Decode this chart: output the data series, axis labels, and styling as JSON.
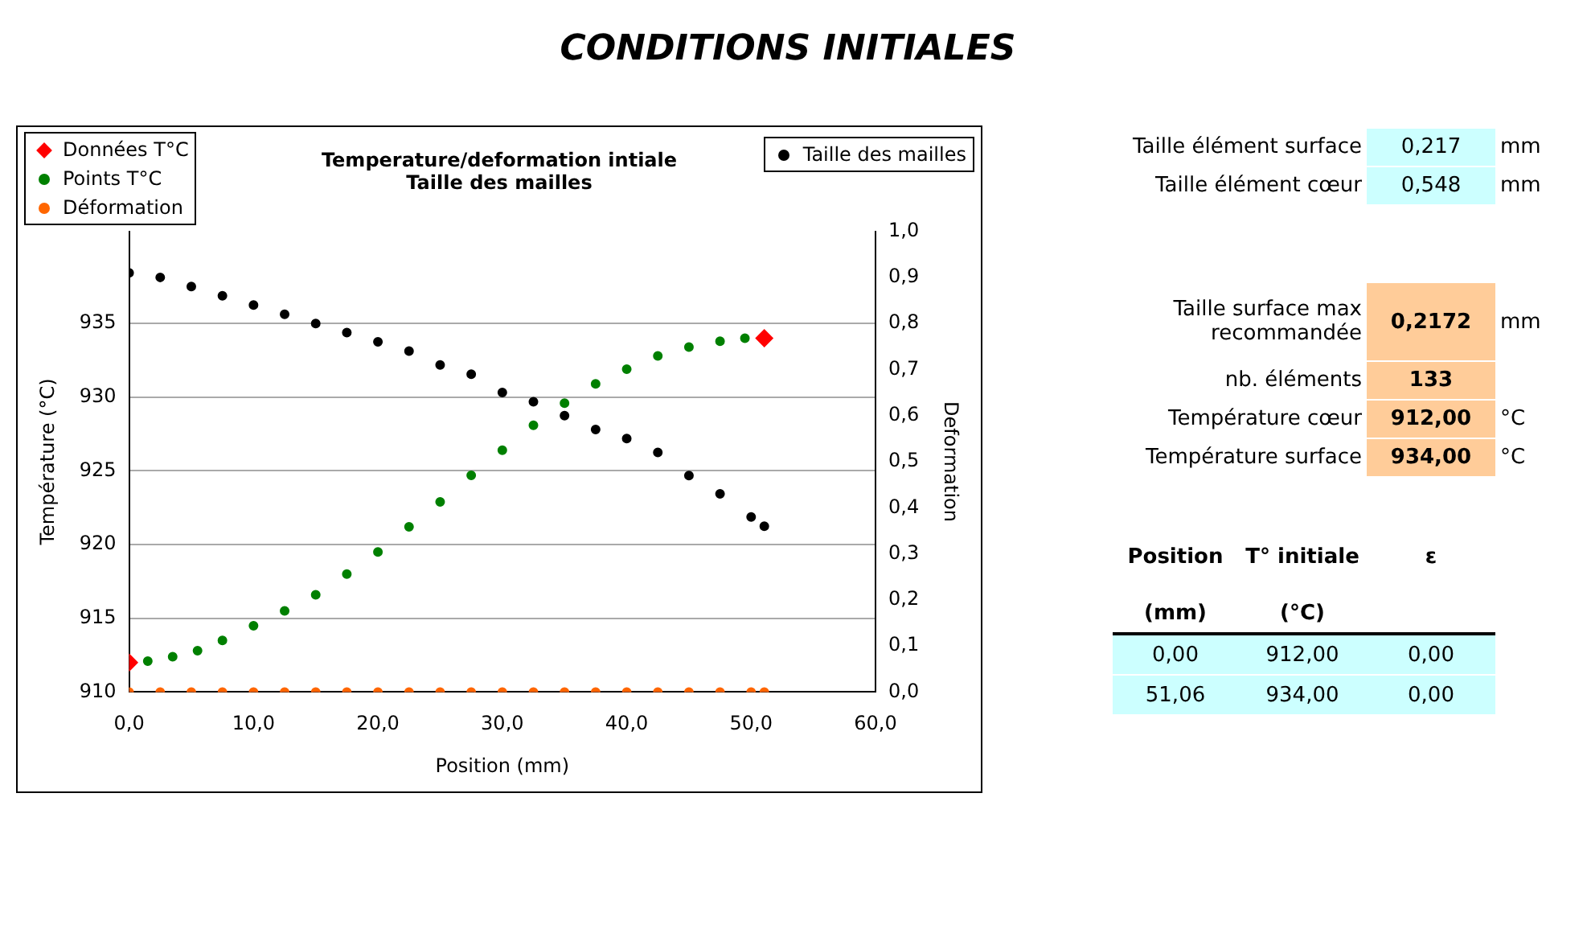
{
  "chart_data": {
    "type": "scatter",
    "title": "Temperature/deformation intiale",
    "subtitle": "Taille des mailles",
    "xlabel": "Position (mm)",
    "ylabel": "Température (°C)",
    "y2label": "Deformation",
    "xlim": [
      0,
      60
    ],
    "xticks": [
      {
        "value": 0,
        "label": "0,0"
      },
      {
        "value": 10,
        "label": "10,0"
      },
      {
        "value": 20,
        "label": "20,0"
      },
      {
        "value": 30,
        "label": "30,0"
      },
      {
        "value": 40,
        "label": "40,0"
      },
      {
        "value": 50,
        "label": "50,0"
      },
      {
        "value": 60,
        "label": "60,0"
      }
    ],
    "ylim": [
      910,
      941.25
    ],
    "yticks": [
      910,
      915,
      920,
      925,
      930,
      935
    ],
    "y2lim": [
      0,
      1
    ],
    "y2ticks": [
      {
        "value": 0,
        "label": "0,0"
      },
      {
        "value": 0.1,
        "label": "0,1"
      },
      {
        "value": 0.2,
        "label": "0,2"
      },
      {
        "value": 0.3,
        "label": "0,3"
      },
      {
        "value": 0.4,
        "label": "0,4"
      },
      {
        "value": 0.5,
        "label": "0,5"
      },
      {
        "value": 0.6,
        "label": "0,6"
      },
      {
        "value": 0.7,
        "label": "0,7"
      },
      {
        "value": 0.8,
        "label": "0,8"
      },
      {
        "value": 0.9,
        "label": "0,9"
      },
      {
        "value": 1,
        "label": "1,0"
      }
    ],
    "grid": "y",
    "legend": "top",
    "series": [
      {
        "name": "Données T°C",
        "color": "#ff0000",
        "marker": "diamond",
        "x": [
          0,
          51.06
        ],
        "values": [
          912,
          934
        ]
      },
      {
        "name": "Points T°C",
        "color": "#008000",
        "marker": "circle",
        "x": [
          1.5,
          3.5,
          5.5,
          7.5,
          10,
          12.5,
          15,
          17.5,
          20,
          22.5,
          25,
          27.5,
          30,
          32.5,
          35,
          37.5,
          40,
          42.5,
          45,
          47.5,
          49.5
        ],
        "values": [
          912.1,
          912.4,
          912.8,
          913.5,
          914.5,
          915.5,
          916.6,
          918.0,
          919.5,
          921.2,
          922.9,
          924.7,
          926.4,
          928.1,
          929.6,
          930.9,
          931.9,
          932.8,
          933.4,
          933.8,
          934.0
        ]
      },
      {
        "name": "Déformation",
        "color": "#ff6600",
        "marker": "circle",
        "axis": "y2",
        "x": [
          0,
          2.5,
          5,
          7.5,
          10,
          12.5,
          15,
          17.5,
          20,
          22.5,
          25,
          27.5,
          30,
          32.5,
          35,
          37.5,
          40,
          42.5,
          45,
          47.5,
          50,
          51.06
        ],
        "values": [
          0,
          0,
          0,
          0,
          0,
          0,
          0,
          0,
          0,
          0,
          0,
          0,
          0,
          0,
          0,
          0,
          0,
          0,
          0,
          0,
          0,
          0
        ]
      },
      {
        "name": "Taille des mailles",
        "color": "#000000",
        "marker": "circle",
        "axis": "y2",
        "x": [
          0,
          2.5,
          5,
          7.5,
          10,
          12.5,
          15,
          17.5,
          20,
          22.5,
          25,
          27.5,
          30,
          32.5,
          35,
          37.5,
          40,
          42.5,
          45,
          47.5,
          50,
          51.06
        ],
        "values": [
          0.91,
          0.9,
          0.88,
          0.86,
          0.84,
          0.82,
          0.8,
          0.78,
          0.76,
          0.74,
          0.71,
          0.69,
          0.65,
          0.63,
          0.6,
          0.57,
          0.55,
          0.52,
          0.47,
          0.43,
          0.38,
          0.36
        ]
      }
    ],
    "annotations": [
      "CONDITIONS INITIALES",
      "Taille élément surface",
      "0,217",
      "mm",
      "Taille élément cœur",
      "0,548",
      "mm",
      "Taille surface max recommandée",
      "0,2172",
      "mm",
      "nb. éléments",
      "133",
      "Température cœur",
      "912,00",
      "°C",
      "Température surface",
      "934,00",
      "°C",
      "Position",
      "T° initiale",
      "ε",
      "(mm)",
      "(°C)",
      "0,00",
      "912,00",
      "0,00",
      "51,06",
      "934,00",
      "0,00"
    ]
  }
}
